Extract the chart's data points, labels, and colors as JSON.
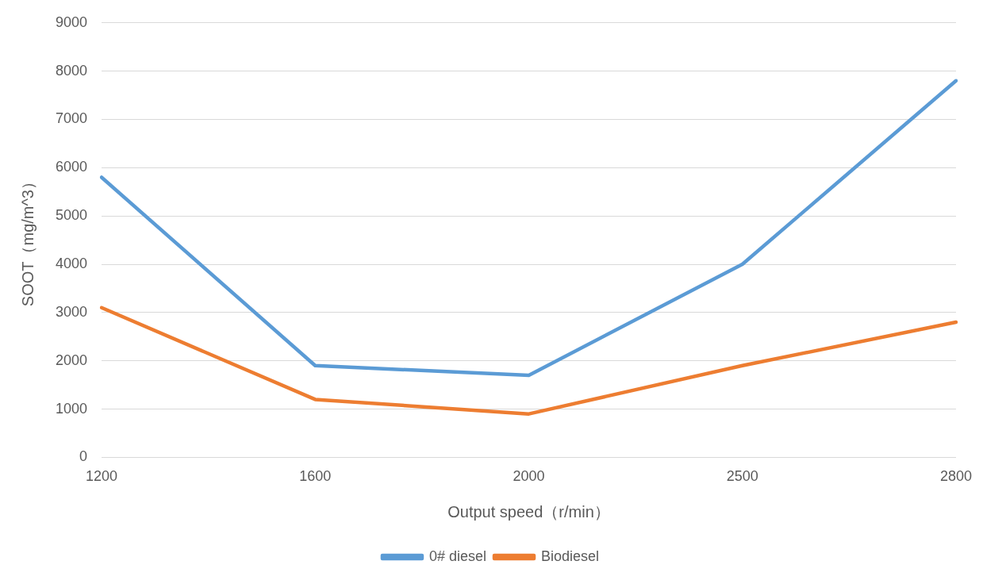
{
  "chart_data": {
    "type": "line",
    "xlabel": "Output speed（r/min）",
    "ylabel": "SOOT（mg/m^3）",
    "categories": [
      "1200",
      "1600",
      "2000",
      "2500",
      "2800"
    ],
    "series": [
      {
        "name": "0# diesel",
        "color": "#5b9bd5",
        "values": [
          5800,
          1900,
          1700,
          4000,
          7800
        ]
      },
      {
        "name": "Biodiesel",
        "color": "#ed7d31",
        "values": [
          3100,
          1200,
          900,
          1900,
          2800
        ]
      }
    ],
    "ylim": [
      0,
      9000
    ],
    "yticks": [
      0,
      1000,
      2000,
      3000,
      4000,
      5000,
      6000,
      7000,
      8000,
      9000
    ],
    "grid": "y",
    "legend": "bottom",
    "marker": "none",
    "line_style": "solid"
  }
}
